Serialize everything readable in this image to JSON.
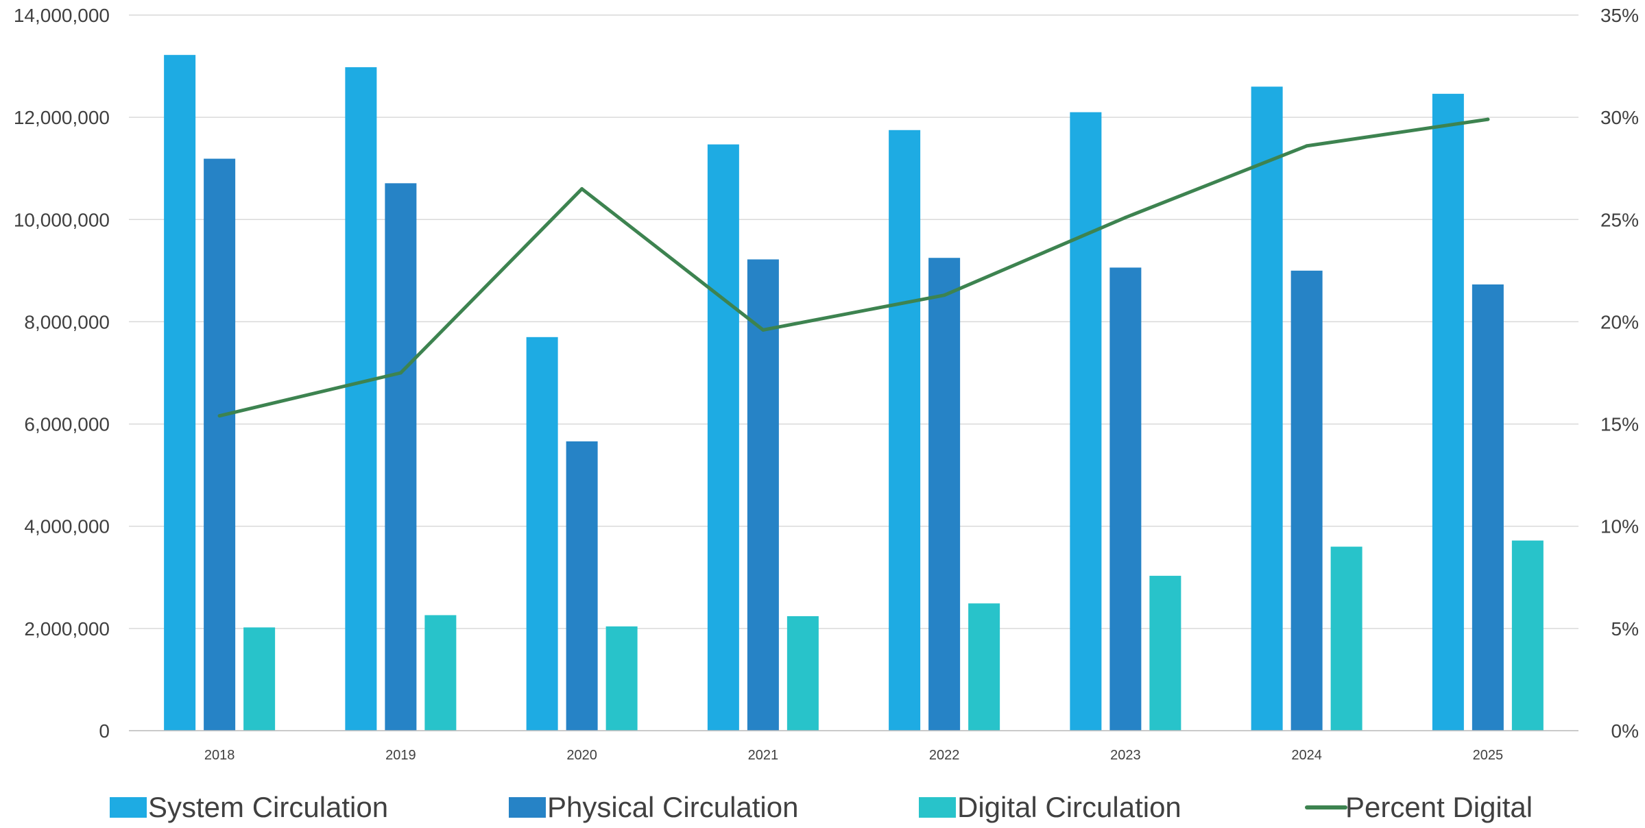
{
  "chart_data": {
    "type": "bar",
    "categories": [
      "2018",
      "2019",
      "2020",
      "2021",
      "2022",
      "2023",
      "2024",
      "2025"
    ],
    "series": [
      {
        "name": "System Circulation",
        "type": "bar",
        "axis": "left",
        "color": "#1EABE3",
        "values": [
          13220000,
          12980000,
          7700000,
          11470000,
          11750000,
          12100000,
          12600000,
          12460000
        ]
      },
      {
        "name": "Physical Circulation",
        "type": "bar",
        "axis": "left",
        "color": "#2683C6",
        "values": [
          11190000,
          10710000,
          5660000,
          9220000,
          9250000,
          9060000,
          9000000,
          8730000
        ]
      },
      {
        "name": "Digital Circulation",
        "type": "bar",
        "axis": "left",
        "color": "#28C3CA",
        "values": [
          2020000,
          2260000,
          2040000,
          2240000,
          2490000,
          3030000,
          3600000,
          3720000
        ]
      },
      {
        "name": "Percent Digital",
        "type": "line",
        "axis": "right",
        "color": "#3D8350",
        "values": [
          15.4,
          17.5,
          26.5,
          19.6,
          21.3,
          25.1,
          28.6,
          29.9
        ]
      }
    ],
    "y_left": {
      "min": 0,
      "max": 14000000,
      "ticks": [
        {
          "value": 0,
          "label": "0"
        },
        {
          "value": 2000000,
          "label": "2,000,000"
        },
        {
          "value": 4000000,
          "label": "4,000,000"
        },
        {
          "value": 6000000,
          "label": "6,000,000"
        },
        {
          "value": 8000000,
          "label": "8,000,000"
        },
        {
          "value": 10000000,
          "label": "10,000,000"
        },
        {
          "value": 12000000,
          "label": "12,000,000"
        },
        {
          "value": 14000000,
          "label": "14,000,000"
        }
      ]
    },
    "y_right": {
      "min": 0,
      "max": 35,
      "ticks": [
        {
          "value": 0,
          "label": "0%"
        },
        {
          "value": 5,
          "label": "5%"
        },
        {
          "value": 10,
          "label": "10%"
        },
        {
          "value": 15,
          "label": "15%"
        },
        {
          "value": 20,
          "label": "20%"
        },
        {
          "value": 25,
          "label": "25%"
        },
        {
          "value": 30,
          "label": "30%"
        },
        {
          "value": 35,
          "label": "35%"
        }
      ]
    },
    "grid": true,
    "gridline_color": "#D9D9D9",
    "legend_position": "bottom",
    "title": "",
    "xlabel": "",
    "ylabel": ""
  }
}
